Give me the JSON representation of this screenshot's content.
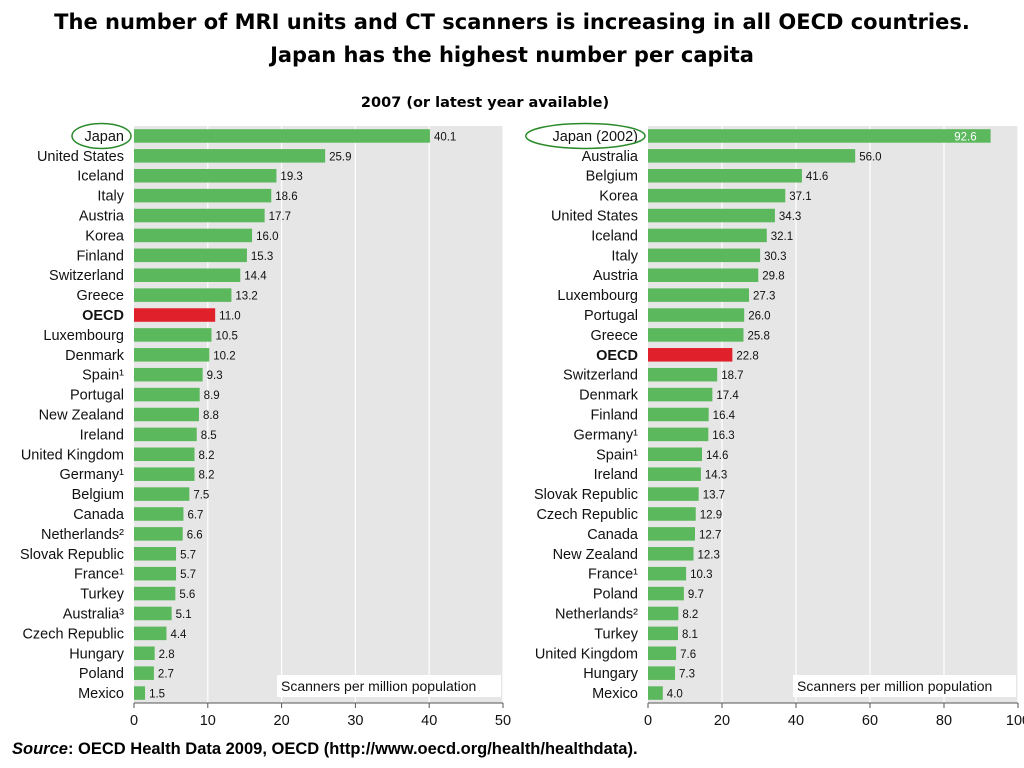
{
  "title": {
    "line1": "The number of MRI units and CT scanners is increasing in all OECD countries.",
    "line2": "Japan has the highest number per capita"
  },
  "subtitle": "2007 (or latest year available)",
  "source": {
    "label": "Source",
    "text": ": OECD Health Data 2009, OECD (http://www.oecd.org/health/healthdata)."
  },
  "colors": {
    "bar": "#5cb85c",
    "highlight": "#e0202a",
    "plot_bg": "#e6e6e6",
    "grid": "#ffffff",
    "circle": "#2a8a2a"
  },
  "chart_data": [
    {
      "type": "bar",
      "orientation": "horizontal",
      "unit_label": "Scanners per million population",
      "xlim": [
        0,
        50
      ],
      "xticks": [
        0,
        10,
        20,
        30,
        40,
        50
      ],
      "grid": true,
      "circled_category": "Japan",
      "highlight_category": "OECD",
      "categories": [
        "Japan",
        "United States",
        "Iceland",
        "Italy",
        "Austria",
        "Korea",
        "Finland",
        "Switzerland",
        "Greece",
        "OECD",
        "Luxembourg",
        "Denmark",
        "Spain¹",
        "Portugal",
        "New Zealand",
        "Ireland",
        "United Kingdom",
        "Germany¹",
        "Belgium",
        "Canada",
        "Netherlands²",
        "Slovak Republic",
        "France¹",
        "Turkey",
        "Australia³",
        "Czech Republic",
        "Hungary",
        "Poland",
        "Mexico"
      ],
      "values": [
        40.1,
        25.9,
        19.3,
        18.6,
        17.7,
        16.0,
        15.3,
        14.4,
        13.2,
        11.0,
        10.5,
        10.2,
        9.3,
        8.9,
        8.8,
        8.5,
        8.2,
        8.2,
        7.5,
        6.7,
        6.6,
        5.7,
        5.7,
        5.6,
        5.1,
        4.4,
        2.8,
        2.7,
        1.5
      ],
      "value_labels": [
        "40.1",
        "25.9",
        "19.3",
        "18.6",
        "17.7",
        "16.0",
        "15.3",
        "14.4",
        "13.2",
        "11.0",
        "10.5",
        "10.2",
        "9.3",
        "8.9",
        "8.8",
        "8.5",
        "8.2",
        "8.2",
        "7.5",
        "6.7",
        "6.6",
        "5.7",
        "5.7",
        "5.6",
        "5.1",
        "4.4",
        "2.8",
        "2.7",
        "1.5"
      ]
    },
    {
      "type": "bar",
      "orientation": "horizontal",
      "unit_label": "Scanners per million population",
      "xlim": [
        0,
        100
      ],
      "xticks": [
        0,
        20,
        40,
        60,
        80,
        100
      ],
      "grid": true,
      "circled_category": "Japan (2002)",
      "highlight_category": "OECD",
      "categories": [
        "Japan (2002)",
        "Australia",
        "Belgium",
        "Korea",
        "United States",
        "Iceland",
        "Italy",
        "Austria",
        "Luxembourg",
        "Portugal",
        "Greece",
        "OECD",
        "Switzerland",
        "Denmark",
        "Finland",
        "Germany¹",
        "Spain¹",
        "Ireland",
        "Slovak Republic",
        "Czech Republic",
        "Canada",
        "New Zealand",
        "France¹",
        "Poland",
        "Netherlands²",
        "Turkey",
        "United Kingdom",
        "Hungary",
        "Mexico"
      ],
      "values": [
        92.6,
        56.0,
        41.6,
        37.1,
        34.3,
        32.1,
        30.3,
        29.8,
        27.3,
        26.0,
        25.8,
        22.8,
        18.7,
        17.4,
        16.4,
        16.3,
        14.6,
        14.3,
        13.7,
        12.9,
        12.7,
        12.3,
        10.3,
        9.7,
        8.2,
        8.1,
        7.6,
        7.3,
        4.0
      ],
      "value_labels": [
        "92.6",
        "56.0",
        "41.6",
        "37.1",
        "34.3",
        "32.1",
        "30.3",
        "29.8",
        "27.3",
        "26.0",
        "25.8",
        "22.8",
        "18.7",
        "17.4",
        "16.4",
        "16.3",
        "14.6",
        "14.3",
        "13.7",
        "12.9",
        "12.7",
        "12.3",
        "10.3",
        "9.7",
        "8.2",
        "8.1",
        "7.6",
        "7.3",
        "4.0"
      ]
    }
  ]
}
